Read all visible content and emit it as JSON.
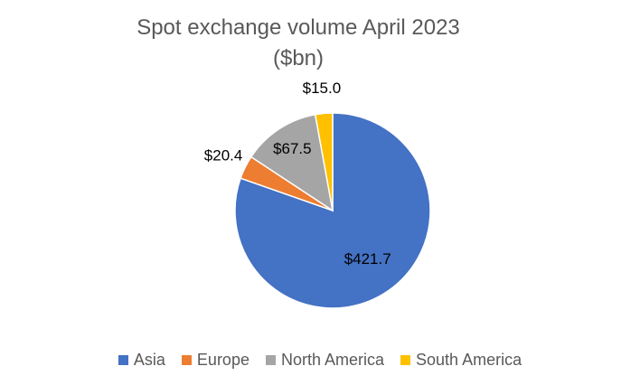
{
  "chart_data": {
    "type": "pie",
    "title": "Spot exchange volume April 2023 ($bn)",
    "categories": [
      "Asia",
      "Europe",
      "North America",
      "South America"
    ],
    "values": [
      421.7,
      20.4,
      67.5,
      15.0
    ],
    "value_labels": [
      "$421.7",
      "$20.4",
      "$67.5",
      "$15.0"
    ],
    "colors": [
      "#4472c4",
      "#ed7d31",
      "#a5a5a5",
      "#ffc000"
    ],
    "legend": "bottom"
  }
}
